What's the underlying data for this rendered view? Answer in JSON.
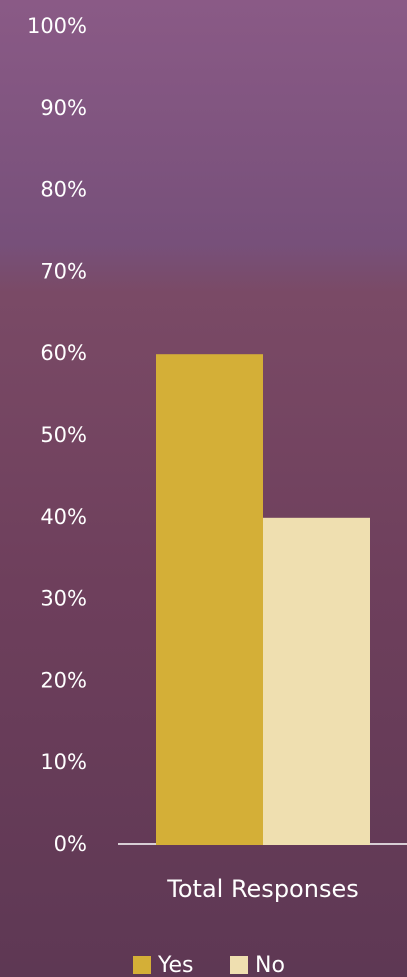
{
  "chart_data": {
    "type": "bar",
    "categories": [
      "Total Responses"
    ],
    "series": [
      {
        "name": "Yes",
        "color": "#d4af37",
        "values": [
          60
        ]
      },
      {
        "name": "No",
        "color": "#efdfb0",
        "values": [
          40
        ]
      }
    ],
    "ylim": [
      0,
      100
    ],
    "yticks": [
      {
        "value": 0,
        "label": "0%"
      },
      {
        "value": 10,
        "label": "10%"
      },
      {
        "value": 20,
        "label": "20%"
      },
      {
        "value": 30,
        "label": "30%"
      },
      {
        "value": 40,
        "label": "40%"
      },
      {
        "value": 50,
        "label": "50%"
      },
      {
        "value": 60,
        "label": "60%"
      },
      {
        "value": 70,
        "label": "70%"
      },
      {
        "value": 80,
        "label": "80%"
      },
      {
        "value": 90,
        "label": "90%"
      },
      {
        "value": 100,
        "label": "100%"
      }
    ],
    "legend": "bottom"
  }
}
